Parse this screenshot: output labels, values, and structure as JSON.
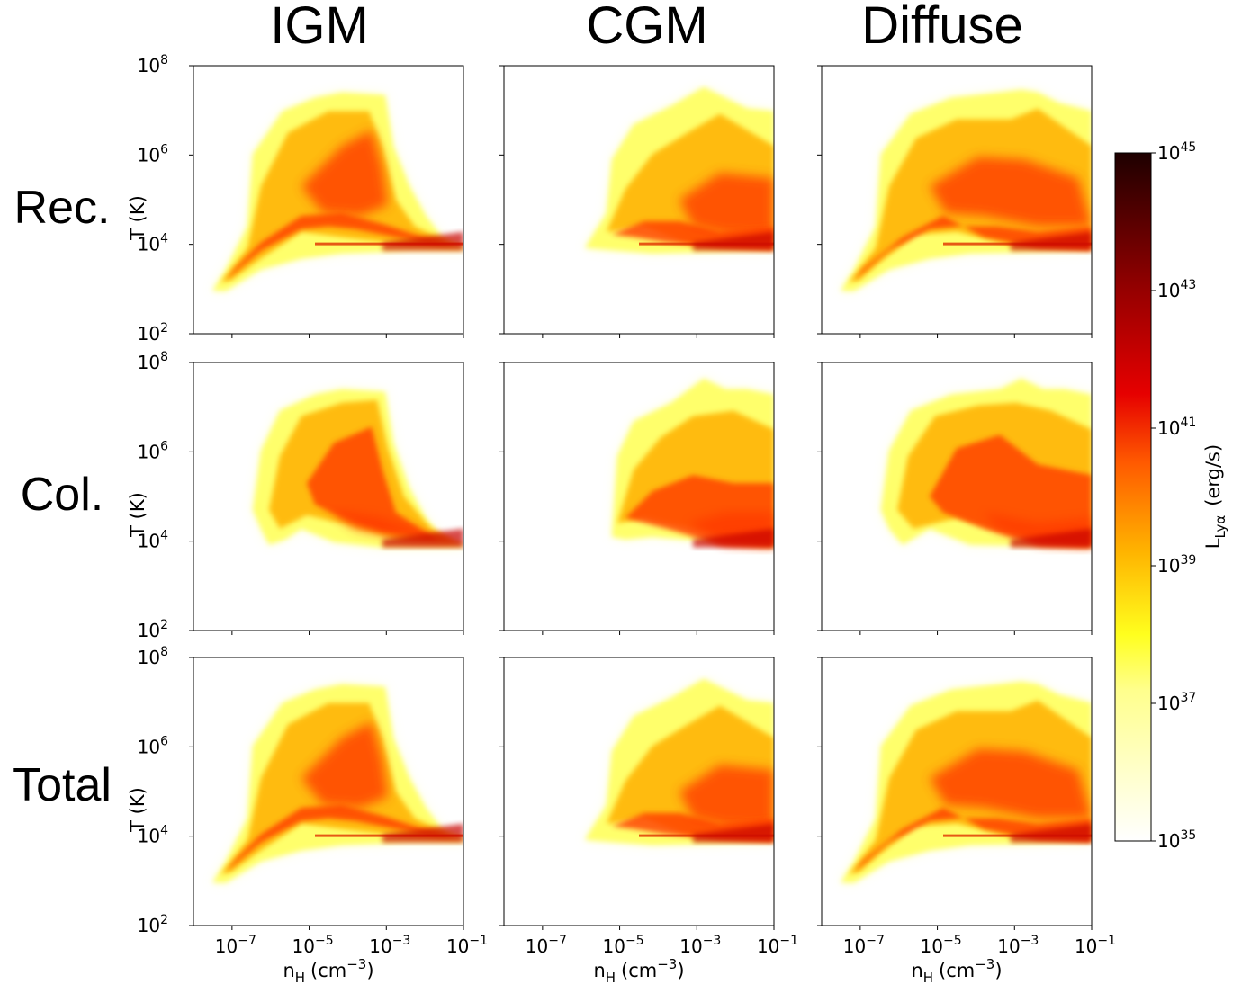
{
  "columns": [
    "IGM",
    "CGM",
    "Diffuse"
  ],
  "rows": [
    "Rec.",
    "Col.",
    "Total"
  ],
  "chart_data": {
    "type": "heatmap",
    "description_panels": "3x3 grid of 2D histograms (phase diagrams)",
    "xlabel": {
      "base": "n",
      "sub": "H",
      "units": "(cm",
      "unit_exp": "−3",
      "close": ")"
    },
    "ylabel": "T (K)",
    "x_scale": "log",
    "y_scale": "log",
    "xlim": [
      1e-08,
      0.1
    ],
    "ylim": [
      100,
      100000000.0
    ],
    "x_ticks": [
      {
        "base": "10",
        "exp": "−7"
      },
      {
        "base": "10",
        "exp": "−5"
      },
      {
        "base": "10",
        "exp": "−3"
      },
      {
        "base": "10",
        "exp": "−1"
      }
    ],
    "y_ticks": [
      {
        "base": "10",
        "exp": "8"
      },
      {
        "base": "10",
        "exp": "6"
      },
      {
        "base": "10",
        "exp": "4"
      },
      {
        "base": "10",
        "exp": "2"
      }
    ],
    "colorbar": {
      "label_base": "L",
      "label_sub": "Lyα",
      "label_units": "(erg/s)",
      "scale": "log",
      "range": [
        1e+35,
        1e+45
      ],
      "colormap": "hot_r",
      "ticks": [
        {
          "base": "10",
          "exp": "45"
        },
        {
          "base": "10",
          "exp": "43"
        },
        {
          "base": "10",
          "exp": "41"
        },
        {
          "base": "10",
          "exp": "39"
        },
        {
          "base": "10",
          "exp": "37"
        },
        {
          "base": "10",
          "exp": "35"
        }
      ]
    },
    "colors": {
      "low": "#ffffff",
      "mid_low": "#ffff33",
      "mid": "#ff9900",
      "mid_high": "#e60000",
      "high": "#1a0000"
    }
  }
}
